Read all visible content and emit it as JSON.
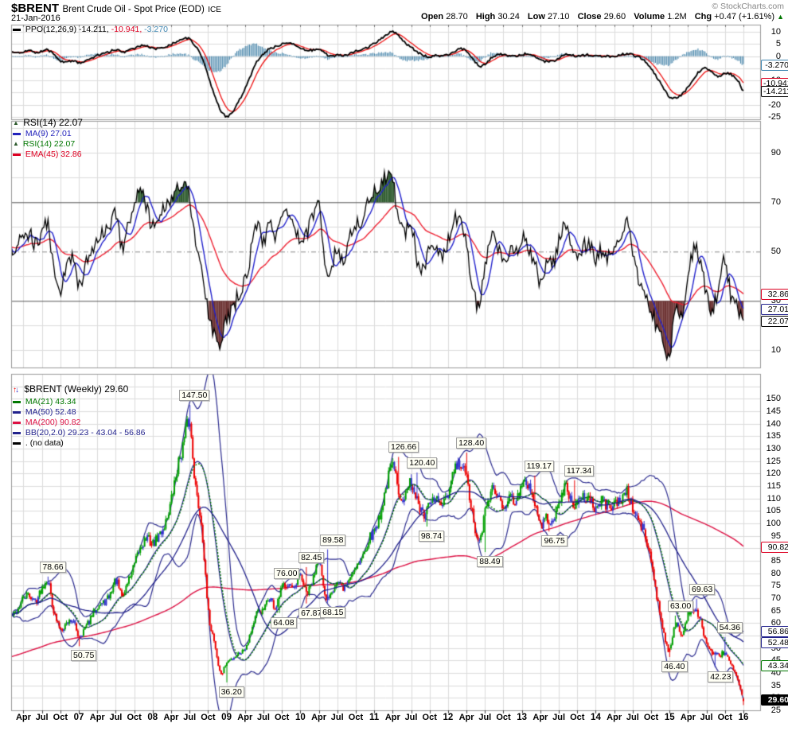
{
  "header": {
    "symbol": "$BRENT",
    "title": "Brent Crude Oil - Spot Price (EOD)",
    "exchange": "ICE",
    "date": "21-Jan-2016",
    "copyright": "© StockCharts.com",
    "quote": {
      "open_label": "Open",
      "open": "28.70",
      "high_label": "High",
      "high": "30.24",
      "low_label": "Low",
      "low": "27.10",
      "close_label": "Close",
      "close": "29.60",
      "volume_label": "Volume",
      "volume": "1.2M",
      "chg_label": "Chg",
      "chg": "+0.47 (+1.61%)",
      "chg_dir": "▲"
    }
  },
  "ppo": {
    "legend": {
      "name": "PPO(12,26,9)",
      "v1": "-14.211,",
      "v2": "-10.941,",
      "v3": "-3.270"
    },
    "yticks": [
      10,
      5,
      0,
      -5,
      -10,
      -15,
      -20,
      -25
    ],
    "callouts": [
      {
        "v": -3.27,
        "t": "-3.270",
        "c": "#3d85b0"
      },
      {
        "v": -10.941,
        "t": "-10.941",
        "c": "#dd0022"
      },
      {
        "v": -14.211,
        "t": "-14.211",
        "c": "#000000"
      }
    ]
  },
  "rsi": {
    "legend": {
      "r1": "RSI(14) 22.07",
      "r2": "MA(9) 27.01",
      "r3": "RSI(14) 22.07",
      "r4": "EMA(45) 32.86"
    },
    "yticks": [
      90,
      70,
      50,
      30,
      10
    ],
    "callouts": [
      {
        "v": 32.86,
        "t": "32.86",
        "c": "#dd0022"
      },
      {
        "v": 27.01,
        "t": "27.01",
        "c": "#22228c"
      },
      {
        "v": 22.07,
        "t": "22.07",
        "c": "#000000"
      }
    ]
  },
  "main": {
    "legend": {
      "r1": "$BRENT (Weekly) 29.60",
      "r2": "MA(21) 43.34",
      "r3": "MA(50) 52.48",
      "r4": "MA(200) 90.82",
      "r5": "BB(20,2.0) 29.23 - 43.04 - 56.86",
      "r6": ". (no data)"
    },
    "yticks": [
      150,
      145,
      140,
      135,
      130,
      125,
      120,
      115,
      110,
      105,
      100,
      95,
      90,
      85,
      80,
      75,
      70,
      65,
      60,
      55,
      50,
      45,
      40,
      35,
      30,
      25
    ],
    "callouts": [
      {
        "v": 90.82,
        "t": "90.82",
        "c": "#dd0022"
      },
      {
        "v": 56.86,
        "t": "56.86",
        "c": "#22228c"
      },
      {
        "v": 52.48,
        "t": "52.48",
        "c": "#22228c"
      },
      {
        "v": 43.34,
        "t": "43.34",
        "c": "#007700"
      },
      {
        "v": 29.6,
        "t": "29.60",
        "c": "#000000",
        "fill": true
      }
    ]
  },
  "colors": {
    "bar_up": "#00a000",
    "bar_down": "#ee0000",
    "bar_neutral": "#3333cc",
    "bb_band": "#2b2b8f",
    "ma21": "#007700",
    "ma50": "#22228c",
    "ma200": "#dd1144",
    "rsi_line": "#000000",
    "rsi_ma9": "#2222cc",
    "rsi_ema45": "#ee2233",
    "overbought_fill": "#2d5a2d",
    "oversold_fill": "#6b3030",
    "ppo_line": "#000000",
    "ppo_signal": "#ee1111",
    "ppo_hist": "#3e7fa6",
    "grid": "#dcdcdc",
    "grid_dark": "#555555",
    "grid_mid": "#888888",
    "frame": "#999999",
    "chg_up": "#007700"
  },
  "chart_data": [
    {
      "type": "line",
      "panel": "ppo",
      "title": "PPO(12,26,9)",
      "ylim": [
        -26,
        13
      ],
      "x_unit": "months from Feb-2006",
      "monthly_values": [
        2,
        1.5,
        1.8,
        2.2,
        1.5,
        2,
        2.5,
        0.5,
        -2,
        -2.6,
        -1.8,
        -2.8,
        -2.2,
        -1,
        0.3,
        1.2,
        1.8,
        2.8,
        1.8,
        2.2,
        3.2,
        4.3,
        4.3,
        3.4,
        3.2,
        3.8,
        4.8,
        6.3,
        7.4,
        7,
        4,
        -0.5,
        -8,
        -16,
        -22,
        -24.8,
        -23,
        -18.5,
        -13.5,
        -7.5,
        -2,
        1,
        3,
        4,
        5,
        5.5,
        5,
        3.5,
        2.5,
        2.5,
        3,
        1.2,
        0,
        0.4,
        0.3,
        1,
        2,
        2.6,
        3.8,
        5.2,
        7,
        9,
        10.2,
        8.5,
        5.5,
        3.8,
        1.8,
        0.3,
        -0.2,
        0.4,
        0,
        0.6,
        2,
        3,
        2.2,
        -1,
        -3.9,
        -3.4,
        -0.8,
        0.6,
        0.6,
        0,
        0,
        0.6,
        1,
        0,
        -1.6,
        -2.1,
        -2,
        -0.9,
        0.6,
        0.5,
        0,
        0.4,
        0.5,
        0,
        0.1,
        0,
        0,
        0.5,
        1,
        0.6,
        -0.4,
        -2,
        -5,
        -9,
        -13,
        -16.8,
        -17.2,
        -15.8,
        -12.8,
        -8.8,
        -6,
        -5,
        -7,
        -8.2,
        -7,
        -7.6,
        -9.5,
        -14.211
      ],
      "final": {
        "ppo": -14.211,
        "signal": -10.941,
        "histogram": -3.27
      }
    },
    {
      "type": "line",
      "panel": "rsi",
      "title": "RSI(14)",
      "ylim": [
        3,
        103
      ],
      "hlines": {
        "overbought": 70,
        "mid": 50,
        "oversold": 30
      },
      "monthly_values": [
        50,
        52,
        56,
        57,
        53,
        58,
        61,
        40,
        35,
        44,
        47,
        36,
        44,
        50,
        56,
        58,
        61,
        66,
        52,
        62,
        68,
        74,
        68,
        60,
        64,
        68,
        71,
        75,
        77,
        72,
        52,
        42,
        26,
        17,
        13,
        22,
        27,
        33,
        38,
        50,
        60,
        54,
        63,
        56,
        64,
        67,
        62,
        53,
        57,
        64,
        70,
        45,
        44,
        51,
        47,
        55,
        61,
        63,
        71,
        74,
        77,
        80,
        79,
        62,
        57,
        62,
        46,
        43,
        51,
        53,
        49,
        54,
        64,
        61,
        54,
        35,
        29,
        45,
        55,
        52,
        46,
        49,
        50,
        56,
        51,
        47,
        38,
        45,
        45,
        54,
        61,
        51,
        49,
        52,
        53,
        46,
        51,
        48,
        51,
        54,
        63,
        48,
        39,
        32,
        26,
        19,
        13,
        9,
        28,
        25,
        42,
        51,
        47,
        32,
        27,
        36,
        46,
        32,
        27,
        22.07
      ],
      "final": {
        "rsi": 22.07,
        "ma9": 27.01,
        "ema45": 32.86
      }
    },
    {
      "type": "candlestick",
      "panel": "main",
      "title": "$BRENT Weekly",
      "ylim": [
        25,
        160
      ],
      "x_unit": "months from Feb-2006",
      "monthly_close": [
        63,
        65,
        70,
        71,
        69,
        74,
        77,
        64,
        58,
        60,
        61,
        55,
        58,
        62,
        67,
        68,
        71,
        77,
        71,
        77,
        83,
        90,
        94,
        92,
        95,
        100,
        109,
        122,
        132,
        140,
        114,
        98,
        65,
        53,
        40,
        44,
        46,
        48,
        50,
        57,
        64,
        65,
        70,
        66,
        74,
        76,
        73,
        79,
        72,
        77,
        86,
        70,
        73,
        76,
        74,
        78,
        83,
        86,
        93,
        97,
        104,
        115,
        123,
        113,
        111,
        116,
        109,
        103,
        107,
        110,
        107,
        111,
        121,
        123,
        118,
        103,
        92,
        104,
        113,
        111,
        108,
        110,
        110,
        114,
        116,
        109,
        100,
        102,
        102,
        107,
        115,
        109,
        108,
        110,
        110,
        106,
        109,
        107,
        108,
        109,
        113,
        106,
        101,
        95,
        85,
        70,
        57,
        49,
        60,
        55,
        64,
        65,
        61,
        52,
        48,
        47,
        48,
        43,
        37,
        29.6
      ],
      "final_bar": {
        "open": 28.7,
        "high": 30.24,
        "low": 27.1,
        "close": 29.6
      },
      "overlays_final": {
        "ma21": 43.34,
        "ma50": 52.48,
        "ma200": 90.82,
        "bb_lower": 29.23,
        "bb_mid": 43.04,
        "bb_upper": 56.86
      },
      "annotations": [
        {
          "m": 6,
          "v": 78.66,
          "t": "78.66",
          "side": "above"
        },
        {
          "m": 11,
          "v": 50.75,
          "t": "50.75",
          "side": "below"
        },
        {
          "m": 29,
          "v": 147.5,
          "t": "147.50",
          "side": "above"
        },
        {
          "m": 35,
          "v": 36.2,
          "t": "36.20",
          "side": "below"
        },
        {
          "m": 43.5,
          "v": 64.08,
          "t": "64.08",
          "side": "below"
        },
        {
          "m": 48,
          "v": 67.87,
          "t": "67.87",
          "side": "below"
        },
        {
          "m": 51.5,
          "v": 68.15,
          "t": "68.15",
          "side": "below"
        },
        {
          "m": 44,
          "v": 76.0,
          "t": "76.00",
          "side": "above"
        },
        {
          "m": 48,
          "v": 82.45,
          "t": "82.45",
          "side": "above"
        },
        {
          "m": 51.5,
          "v": 89.58,
          "t": "89.58",
          "side": "above"
        },
        {
          "m": 63,
          "v": 126.66,
          "t": "126.66",
          "side": "above"
        },
        {
          "m": 66,
          "v": 120.4,
          "t": "120.40",
          "side": "above"
        },
        {
          "m": 67.5,
          "v": 98.74,
          "t": "98.74",
          "side": "below"
        },
        {
          "m": 74,
          "v": 128.4,
          "t": "128.40",
          "side": "above"
        },
        {
          "m": 77,
          "v": 88.49,
          "t": "88.49",
          "side": "below"
        },
        {
          "m": 85,
          "v": 119.17,
          "t": "119.17",
          "side": "above"
        },
        {
          "m": 87.5,
          "v": 96.75,
          "t": "96.75",
          "side": "below"
        },
        {
          "m": 91.5,
          "v": 117.34,
          "t": "117.34",
          "side": "above"
        },
        {
          "m": 107,
          "v": 46.4,
          "t": "46.40",
          "side": "below"
        },
        {
          "m": 108,
          "v": 63.0,
          "t": "63.00",
          "side": "above"
        },
        {
          "m": 111.5,
          "v": 69.63,
          "t": "69.63",
          "side": "above"
        },
        {
          "m": 114.5,
          "v": 42.23,
          "t": "42.23",
          "side": "below"
        },
        {
          "m": 116,
          "v": 54.36,
          "t": "54.36",
          "side": "above"
        }
      ]
    }
  ],
  "xaxis": {
    "labels": [
      {
        "m": 2,
        "t": "Apr"
      },
      {
        "m": 5,
        "t": "Jul"
      },
      {
        "m": 8,
        "t": "Oct"
      },
      {
        "m": 11,
        "t": "07",
        "year": true
      },
      {
        "m": 14,
        "t": "Apr"
      },
      {
        "m": 17,
        "t": "Jul"
      },
      {
        "m": 20,
        "t": "Oct"
      },
      {
        "m": 23,
        "t": "08",
        "year": true
      },
      {
        "m": 26,
        "t": "Apr"
      },
      {
        "m": 29,
        "t": "Jul"
      },
      {
        "m": 32,
        "t": "Oct"
      },
      {
        "m": 35,
        "t": "09",
        "year": true
      },
      {
        "m": 38,
        "t": "Apr"
      },
      {
        "m": 41,
        "t": "Jul"
      },
      {
        "m": 44,
        "t": "Oct"
      },
      {
        "m": 47,
        "t": "10",
        "year": true
      },
      {
        "m": 50,
        "t": "Apr"
      },
      {
        "m": 53,
        "t": "Jul"
      },
      {
        "m": 56,
        "t": "Oct"
      },
      {
        "m": 59,
        "t": "11",
        "year": true
      },
      {
        "m": 62,
        "t": "Apr"
      },
      {
        "m": 65,
        "t": "Jul"
      },
      {
        "m": 68,
        "t": "Oct"
      },
      {
        "m": 71,
        "t": "12",
        "year": true
      },
      {
        "m": 74,
        "t": "Apr"
      },
      {
        "m": 77,
        "t": "Jul"
      },
      {
        "m": 80,
        "t": "Oct"
      },
      {
        "m": 83,
        "t": "13",
        "year": true
      },
      {
        "m": 86,
        "t": "Apr"
      },
      {
        "m": 89,
        "t": "Jul"
      },
      {
        "m": 92,
        "t": "Oct"
      },
      {
        "m": 95,
        "t": "14",
        "year": true
      },
      {
        "m": 98,
        "t": "Apr"
      },
      {
        "m": 101,
        "t": "Jul"
      },
      {
        "m": 104,
        "t": "Oct"
      },
      {
        "m": 107,
        "t": "15",
        "year": true
      },
      {
        "m": 110,
        "t": "Apr"
      },
      {
        "m": 113,
        "t": "Jul"
      },
      {
        "m": 116,
        "t": "Oct"
      },
      {
        "m": 119,
        "t": "16",
        "year": true
      }
    ]
  }
}
